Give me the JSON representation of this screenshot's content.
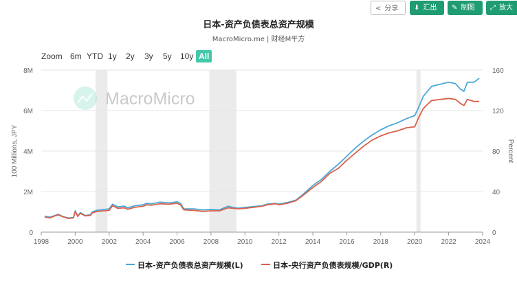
{
  "toolbar": {
    "share_label": "分享",
    "export_label": "汇出",
    "draw_label": "制图",
    "zoom_label": "放大",
    "accent_color": "#1f9c72"
  },
  "header": {
    "title": "日本-资产负债表总资产规模",
    "subtitle": "MacroMicro.me | 财经M平方"
  },
  "range_selector": {
    "zoom_label": "Zoom",
    "buttons": [
      "6m",
      "YTD",
      "1y",
      "2y",
      "3y",
      "5y",
      "10y",
      "All"
    ],
    "active": "All",
    "active_color": "#43c8a8"
  },
  "watermark": {
    "text": "MacroMicro"
  },
  "chart_data": {
    "type": "line",
    "title": "日本-资产负债表总资产规模",
    "subtitle": "MacroMicro.me | 财经M平方",
    "xlim": [
      1998.0,
      2024.0
    ],
    "x_ticks": [
      "1998",
      "2000",
      "2002",
      "2004",
      "2006",
      "2008",
      "2010",
      "2012",
      "2014",
      "2016",
      "2018",
      "2020",
      "2022",
      "2024"
    ],
    "y_left": {
      "label": "100 Millions, JPY",
      "ylim": [
        0,
        8000000
      ],
      "ticks": [
        "0",
        "2M",
        "4M",
        "6M",
        "8M"
      ]
    },
    "y_right": {
      "label": "Percent",
      "ylim": [
        0,
        160
      ],
      "ticks": [
        "0",
        "40",
        "80",
        "120",
        "160"
      ]
    },
    "grid": true,
    "legend": "bottom",
    "shaded_periods": [
      [
        2001.2,
        2001.9
      ],
      [
        2007.9,
        2009.5
      ],
      [
        2020.1,
        2020.35
      ]
    ],
    "series": [
      {
        "name": "日本-资产负债表总资产规模(L)",
        "axis": "left",
        "color": "#4ba8d6",
        "points": [
          [
            1998.2,
            790000
          ],
          [
            1998.5,
            740000
          ],
          [
            1998.8,
            820000
          ],
          [
            1999.0,
            880000
          ],
          [
            1999.3,
            760000
          ],
          [
            1999.6,
            700000
          ],
          [
            1999.9,
            720000
          ],
          [
            2000.0,
            1050000
          ],
          [
            2000.15,
            800000
          ],
          [
            2000.3,
            960000
          ],
          [
            2000.6,
            820000
          ],
          [
            2000.9,
            860000
          ],
          [
            2001.0,
            1000000
          ],
          [
            2001.3,
            1080000
          ],
          [
            2001.7,
            1120000
          ],
          [
            2002.0,
            1150000
          ],
          [
            2002.2,
            1380000
          ],
          [
            2002.5,
            1250000
          ],
          [
            2002.9,
            1280000
          ],
          [
            2003.1,
            1200000
          ],
          [
            2003.5,
            1300000
          ],
          [
            2004.0,
            1350000
          ],
          [
            2004.2,
            1420000
          ],
          [
            2004.5,
            1400000
          ],
          [
            2005.0,
            1480000
          ],
          [
            2005.5,
            1440000
          ],
          [
            2006.0,
            1500000
          ],
          [
            2006.2,
            1420000
          ],
          [
            2006.4,
            1150000
          ],
          [
            2007.0,
            1150000
          ],
          [
            2007.5,
            1100000
          ],
          [
            2008.0,
            1120000
          ],
          [
            2008.5,
            1100000
          ],
          [
            2009.0,
            1280000
          ],
          [
            2009.3,
            1220000
          ],
          [
            2009.6,
            1180000
          ],
          [
            2010.0,
            1220000
          ],
          [
            2010.5,
            1260000
          ],
          [
            2011.0,
            1300000
          ],
          [
            2011.3,
            1380000
          ],
          [
            2011.8,
            1420000
          ],
          [
            2012.0,
            1380000
          ],
          [
            2012.5,
            1460000
          ],
          [
            2013.0,
            1580000
          ],
          [
            2013.4,
            1850000
          ],
          [
            2014.0,
            2300000
          ],
          [
            2014.5,
            2600000
          ],
          [
            2015.0,
            3000000
          ],
          [
            2015.5,
            3350000
          ],
          [
            2016.0,
            3750000
          ],
          [
            2016.5,
            4150000
          ],
          [
            2017.0,
            4500000
          ],
          [
            2017.5,
            4800000
          ],
          [
            2018.0,
            5050000
          ],
          [
            2018.5,
            5250000
          ],
          [
            2019.0,
            5400000
          ],
          [
            2019.5,
            5600000
          ],
          [
            2020.0,
            5750000
          ],
          [
            2020.2,
            6100000
          ],
          [
            2020.5,
            6700000
          ],
          [
            2020.8,
            7000000
          ],
          [
            2021.0,
            7200000
          ],
          [
            2021.5,
            7300000
          ],
          [
            2022.0,
            7400000
          ],
          [
            2022.4,
            7330000
          ],
          [
            2022.7,
            7050000
          ],
          [
            2022.9,
            6950000
          ],
          [
            2023.1,
            7400000
          ],
          [
            2023.5,
            7400000
          ],
          [
            2023.8,
            7600000
          ]
        ]
      },
      {
        "name": "日本-央行资产负债表规模/GDP(R)",
        "axis": "right",
        "color": "#d9604a",
        "points": [
          [
            1998.2,
            15
          ],
          [
            1998.5,
            14
          ],
          [
            1998.8,
            16
          ],
          [
            1999.0,
            17
          ],
          [
            1999.3,
            15
          ],
          [
            1999.6,
            13.5
          ],
          [
            1999.9,
            14
          ],
          [
            2000.0,
            20.5
          ],
          [
            2000.15,
            15.5
          ],
          [
            2000.3,
            18.5
          ],
          [
            2000.6,
            16
          ],
          [
            2000.9,
            16.5
          ],
          [
            2001.0,
            19
          ],
          [
            2001.3,
            20.5
          ],
          [
            2001.7,
            21
          ],
          [
            2002.0,
            21.5
          ],
          [
            2002.2,
            26
          ],
          [
            2002.5,
            23.5
          ],
          [
            2002.9,
            24
          ],
          [
            2003.1,
            22.5
          ],
          [
            2003.5,
            24.5
          ],
          [
            2004.0,
            25.5
          ],
          [
            2004.2,
            27
          ],
          [
            2004.5,
            26.5
          ],
          [
            2005.0,
            28
          ],
          [
            2005.5,
            27.5
          ],
          [
            2006.0,
            28.5
          ],
          [
            2006.2,
            27
          ],
          [
            2006.4,
            22
          ],
          [
            2007.0,
            21.5
          ],
          [
            2007.5,
            20.5
          ],
          [
            2008.0,
            21
          ],
          [
            2008.5,
            21
          ],
          [
            2009.0,
            24
          ],
          [
            2009.3,
            23.5
          ],
          [
            2009.6,
            23
          ],
          [
            2010.0,
            23.5
          ],
          [
            2010.5,
            24.5
          ],
          [
            2011.0,
            25.5
          ],
          [
            2011.3,
            27
          ],
          [
            2011.8,
            28
          ],
          [
            2012.0,
            27
          ],
          [
            2012.5,
            28.5
          ],
          [
            2013.0,
            31
          ],
          [
            2013.4,
            36
          ],
          [
            2014.0,
            44
          ],
          [
            2014.5,
            50
          ],
          [
            2015.0,
            58
          ],
          [
            2015.5,
            63
          ],
          [
            2016.0,
            71
          ],
          [
            2016.5,
            78
          ],
          [
            2017.0,
            85
          ],
          [
            2017.5,
            91
          ],
          [
            2018.0,
            95
          ],
          [
            2018.5,
            98
          ],
          [
            2019.0,
            100
          ],
          [
            2019.5,
            103
          ],
          [
            2020.0,
            104
          ],
          [
            2020.2,
            112
          ],
          [
            2020.5,
            122
          ],
          [
            2020.8,
            127
          ],
          [
            2021.0,
            130
          ],
          [
            2021.5,
            131
          ],
          [
            2022.0,
            132
          ],
          [
            2022.4,
            131
          ],
          [
            2022.7,
            127
          ],
          [
            2022.9,
            125
          ],
          [
            2023.1,
            131
          ],
          [
            2023.5,
            129
          ],
          [
            2023.8,
            129
          ]
        ]
      }
    ]
  }
}
